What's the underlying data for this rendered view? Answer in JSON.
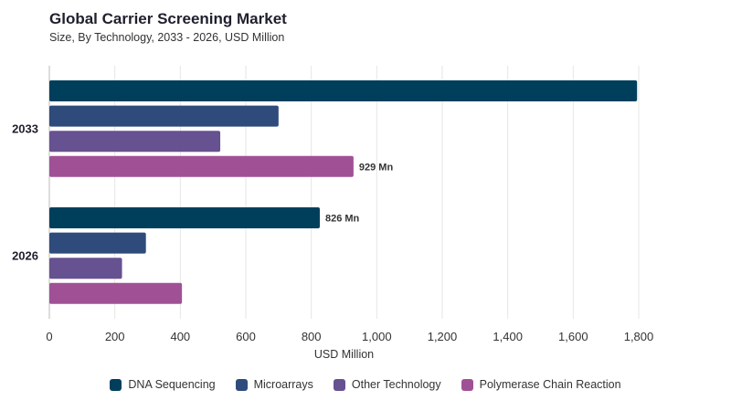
{
  "title": "Global Carrier Screening Market",
  "subtitle": "Size, By Technology, 2033 - 2026, USD Million",
  "chart_data": {
    "type": "bar",
    "orientation": "horizontal",
    "title": "Global Carrier Screening Market",
    "subtitle": "Size, By Technology, 2033 - 2026, USD Million",
    "xlabel": "USD Million",
    "ylabel": "",
    "xlim": [
      0,
      1800
    ],
    "xticks": [
      0,
      200,
      400,
      600,
      800,
      1000,
      1200,
      1400,
      1600,
      1800
    ],
    "xtick_labels": [
      "0",
      "200",
      "400",
      "600",
      "800",
      "1,000",
      "1,200",
      "1,400",
      "1,600",
      "1,800"
    ],
    "categories": [
      "2033",
      "2026"
    ],
    "series": [
      {
        "name": "DNA Sequencing",
        "color": "#003f5c",
        "values": [
          1795,
          826
        ],
        "labels": [
          "",
          "826 Mn"
        ]
      },
      {
        "name": "Microarrays",
        "color": "#2f4b7c",
        "values": [
          700,
          295
        ],
        "labels": [
          "",
          ""
        ]
      },
      {
        "name": "Other Technology",
        "color": "#665191",
        "values": [
          522,
          222
        ],
        "labels": [
          "",
          ""
        ]
      },
      {
        "name": "Polymerase Chain Reaction",
        "color": "#a05195",
        "values": [
          929,
          405
        ],
        "labels": [
          "929 Mn",
          ""
        ]
      }
    ],
    "grid": "vertical",
    "legend_position": "bottom"
  }
}
